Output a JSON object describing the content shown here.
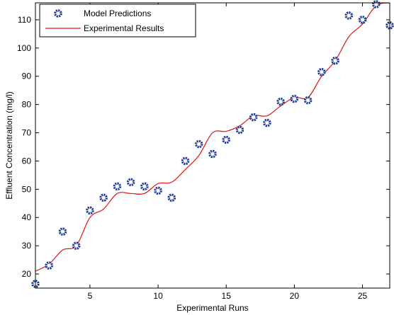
{
  "chart_data": {
    "type": "line",
    "title": "",
    "xlabel": "Experimental Runs",
    "ylabel": "Effluent Concentration (mg/l)",
    "xlim": [
      1,
      27
    ],
    "ylim": [
      15,
      116
    ],
    "x_ticks": [
      5,
      10,
      15,
      20,
      25
    ],
    "y_ticks": [
      20,
      30,
      40,
      50,
      60,
      70,
      80,
      90,
      100,
      110
    ],
    "grid": false,
    "legend_position": "top-left",
    "series": [
      {
        "name": "Model Predictions",
        "style": "markers",
        "color": "#1f3a93",
        "x": [
          1,
          2,
          3,
          4,
          5,
          6,
          7,
          8,
          9,
          10,
          11,
          12,
          13,
          14,
          15,
          16,
          17,
          18,
          19,
          20,
          21,
          22,
          23,
          24,
          25,
          26,
          27
        ],
        "values": [
          16.5,
          23,
          35,
          30,
          42.5,
          47,
          51,
          52.5,
          51,
          49.5,
          47,
          60,
          66,
          62.5,
          67.5,
          71,
          75.5,
          73.5,
          81,
          82,
          81.5,
          91.5,
          95.5,
          111.5,
          110,
          115.5,
          108
        ]
      },
      {
        "name": "Experimental Results",
        "style": "line",
        "color": "#e01515",
        "x": [
          1,
          2,
          3,
          4,
          5,
          6,
          7,
          8,
          9,
          10,
          11,
          12,
          13,
          14,
          15,
          16,
          17,
          18,
          19,
          20,
          21,
          22,
          23,
          24,
          25,
          26,
          27
        ],
        "values": [
          21,
          23.5,
          28.5,
          30,
          40,
          43,
          48.5,
          48.5,
          48.5,
          52,
          52.5,
          57,
          62,
          70,
          70.5,
          72.5,
          76,
          76,
          79.5,
          82.5,
          82.5,
          90,
          95.5,
          104,
          108.5,
          115,
          116
        ]
      }
    ]
  }
}
